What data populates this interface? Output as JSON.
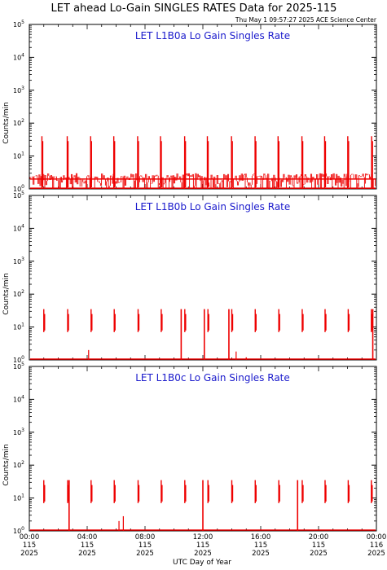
{
  "header": {
    "title": "LET ahead Lo-Gain SINGLES RATES Data for 2025-115",
    "timestamp": "Thu May  1 09:57:27 2025 ACE Science Center"
  },
  "colors": {
    "data": "#ee0000",
    "panel_title": "#1a1acc",
    "axes": "#000000",
    "background": "#ffffff"
  },
  "chart_data": [
    {
      "type": "line",
      "title": "LET L1B0a Lo Gain Singles Rate",
      "ylabel": "Counts/min",
      "xlabel": "UTC Day of Year",
      "yscale": "log",
      "ylim": [
        1,
        100000
      ],
      "xlim": [
        0,
        24
      ],
      "y_ticks": [
        1,
        10,
        100,
        1000,
        10000,
        100000
      ],
      "x_unit": "hours of day 115, 2025",
      "base_level_range": [
        1,
        3
      ],
      "spike_peak_y": 40,
      "spike_hours": [
        0.87,
        2.62,
        4.24,
        5.84,
        7.49,
        9.07,
        10.74,
        12.31,
        13.98,
        15.61,
        17.2,
        18.85,
        20.42,
        22.02,
        23.67
      ]
    },
    {
      "type": "line",
      "title": "LET L1B0b Lo Gain Singles Rate",
      "ylabel": "Counts/min",
      "xlabel": "UTC Day of Year",
      "yscale": "log",
      "ylim": [
        1,
        100000
      ],
      "xlim": [
        0,
        24
      ],
      "y_ticks": [
        1,
        10,
        100,
        1000,
        10000,
        100000
      ],
      "x_unit": "hours of day 115, 2025",
      "base_level": 1,
      "spike_peak_y": 35,
      "spike_hours": [
        1.0,
        2.65,
        4.27,
        5.87,
        7.52,
        9.12,
        10.75,
        12.35,
        14.0,
        15.62,
        17.25,
        18.87,
        20.45,
        22.05,
        23.65
      ],
      "deep_drops": [
        {
          "hour": 10.5,
          "to_y": 1
        },
        {
          "hour": 12.1,
          "to_y": 1
        },
        {
          "hour": 13.8,
          "to_y": 1
        },
        {
          "hour": 23.75,
          "to_y": 1
        }
      ],
      "isolated_points": [
        {
          "hour": 4.1,
          "y": 2
        },
        {
          "hour": 14.3,
          "y": 1.8
        },
        {
          "hour": 15.0,
          "y": 1.2
        }
      ]
    },
    {
      "type": "line",
      "title": "LET L1B0c Lo Gain Singles Rate",
      "ylabel": "Counts/min",
      "xlabel": "UTC Day of Year",
      "yscale": "log",
      "ylim": [
        1,
        100000
      ],
      "xlim": [
        0,
        24
      ],
      "y_ticks": [
        1,
        10,
        100,
        1000,
        10000,
        100000
      ],
      "x_unit": "hours of day 115, 2025",
      "base_level": 1,
      "spike_peak_y": 35,
      "spike_hours": [
        1.0,
        2.65,
        4.27,
        5.87,
        7.52,
        9.12,
        10.75,
        12.35,
        14.0,
        15.62,
        17.25,
        18.87,
        20.45,
        22.05,
        23.65
      ],
      "deep_drops": [
        {
          "hour": 2.75,
          "to_y": 1
        },
        {
          "hour": 12.0,
          "to_y": 1
        },
        {
          "hour": 18.55,
          "to_y": 1
        }
      ],
      "isolated_points": [
        {
          "hour": 6.2,
          "y": 2
        },
        {
          "hour": 6.5,
          "y": 2.8
        }
      ]
    }
  ],
  "x_axis": {
    "ticks": [
      {
        "hour": 0,
        "l1": "00:00",
        "l2": "115",
        "l3": "2025"
      },
      {
        "hour": 4,
        "l1": "04:00",
        "l2": "115",
        "l3": "2025"
      },
      {
        "hour": 8,
        "l1": "08:00",
        "l2": "115",
        "l3": "2025"
      },
      {
        "hour": 12,
        "l1": "12:00",
        "l2": "115",
        "l3": "2025"
      },
      {
        "hour": 16,
        "l1": "16:00",
        "l2": "115",
        "l3": "2025"
      },
      {
        "hour": 20,
        "l1": "20:00",
        "l2": "115",
        "l3": "2025"
      },
      {
        "hour": 24,
        "l1": "00:00",
        "l2": "116",
        "l3": "2025"
      }
    ],
    "label": "UTC Day of Year"
  }
}
